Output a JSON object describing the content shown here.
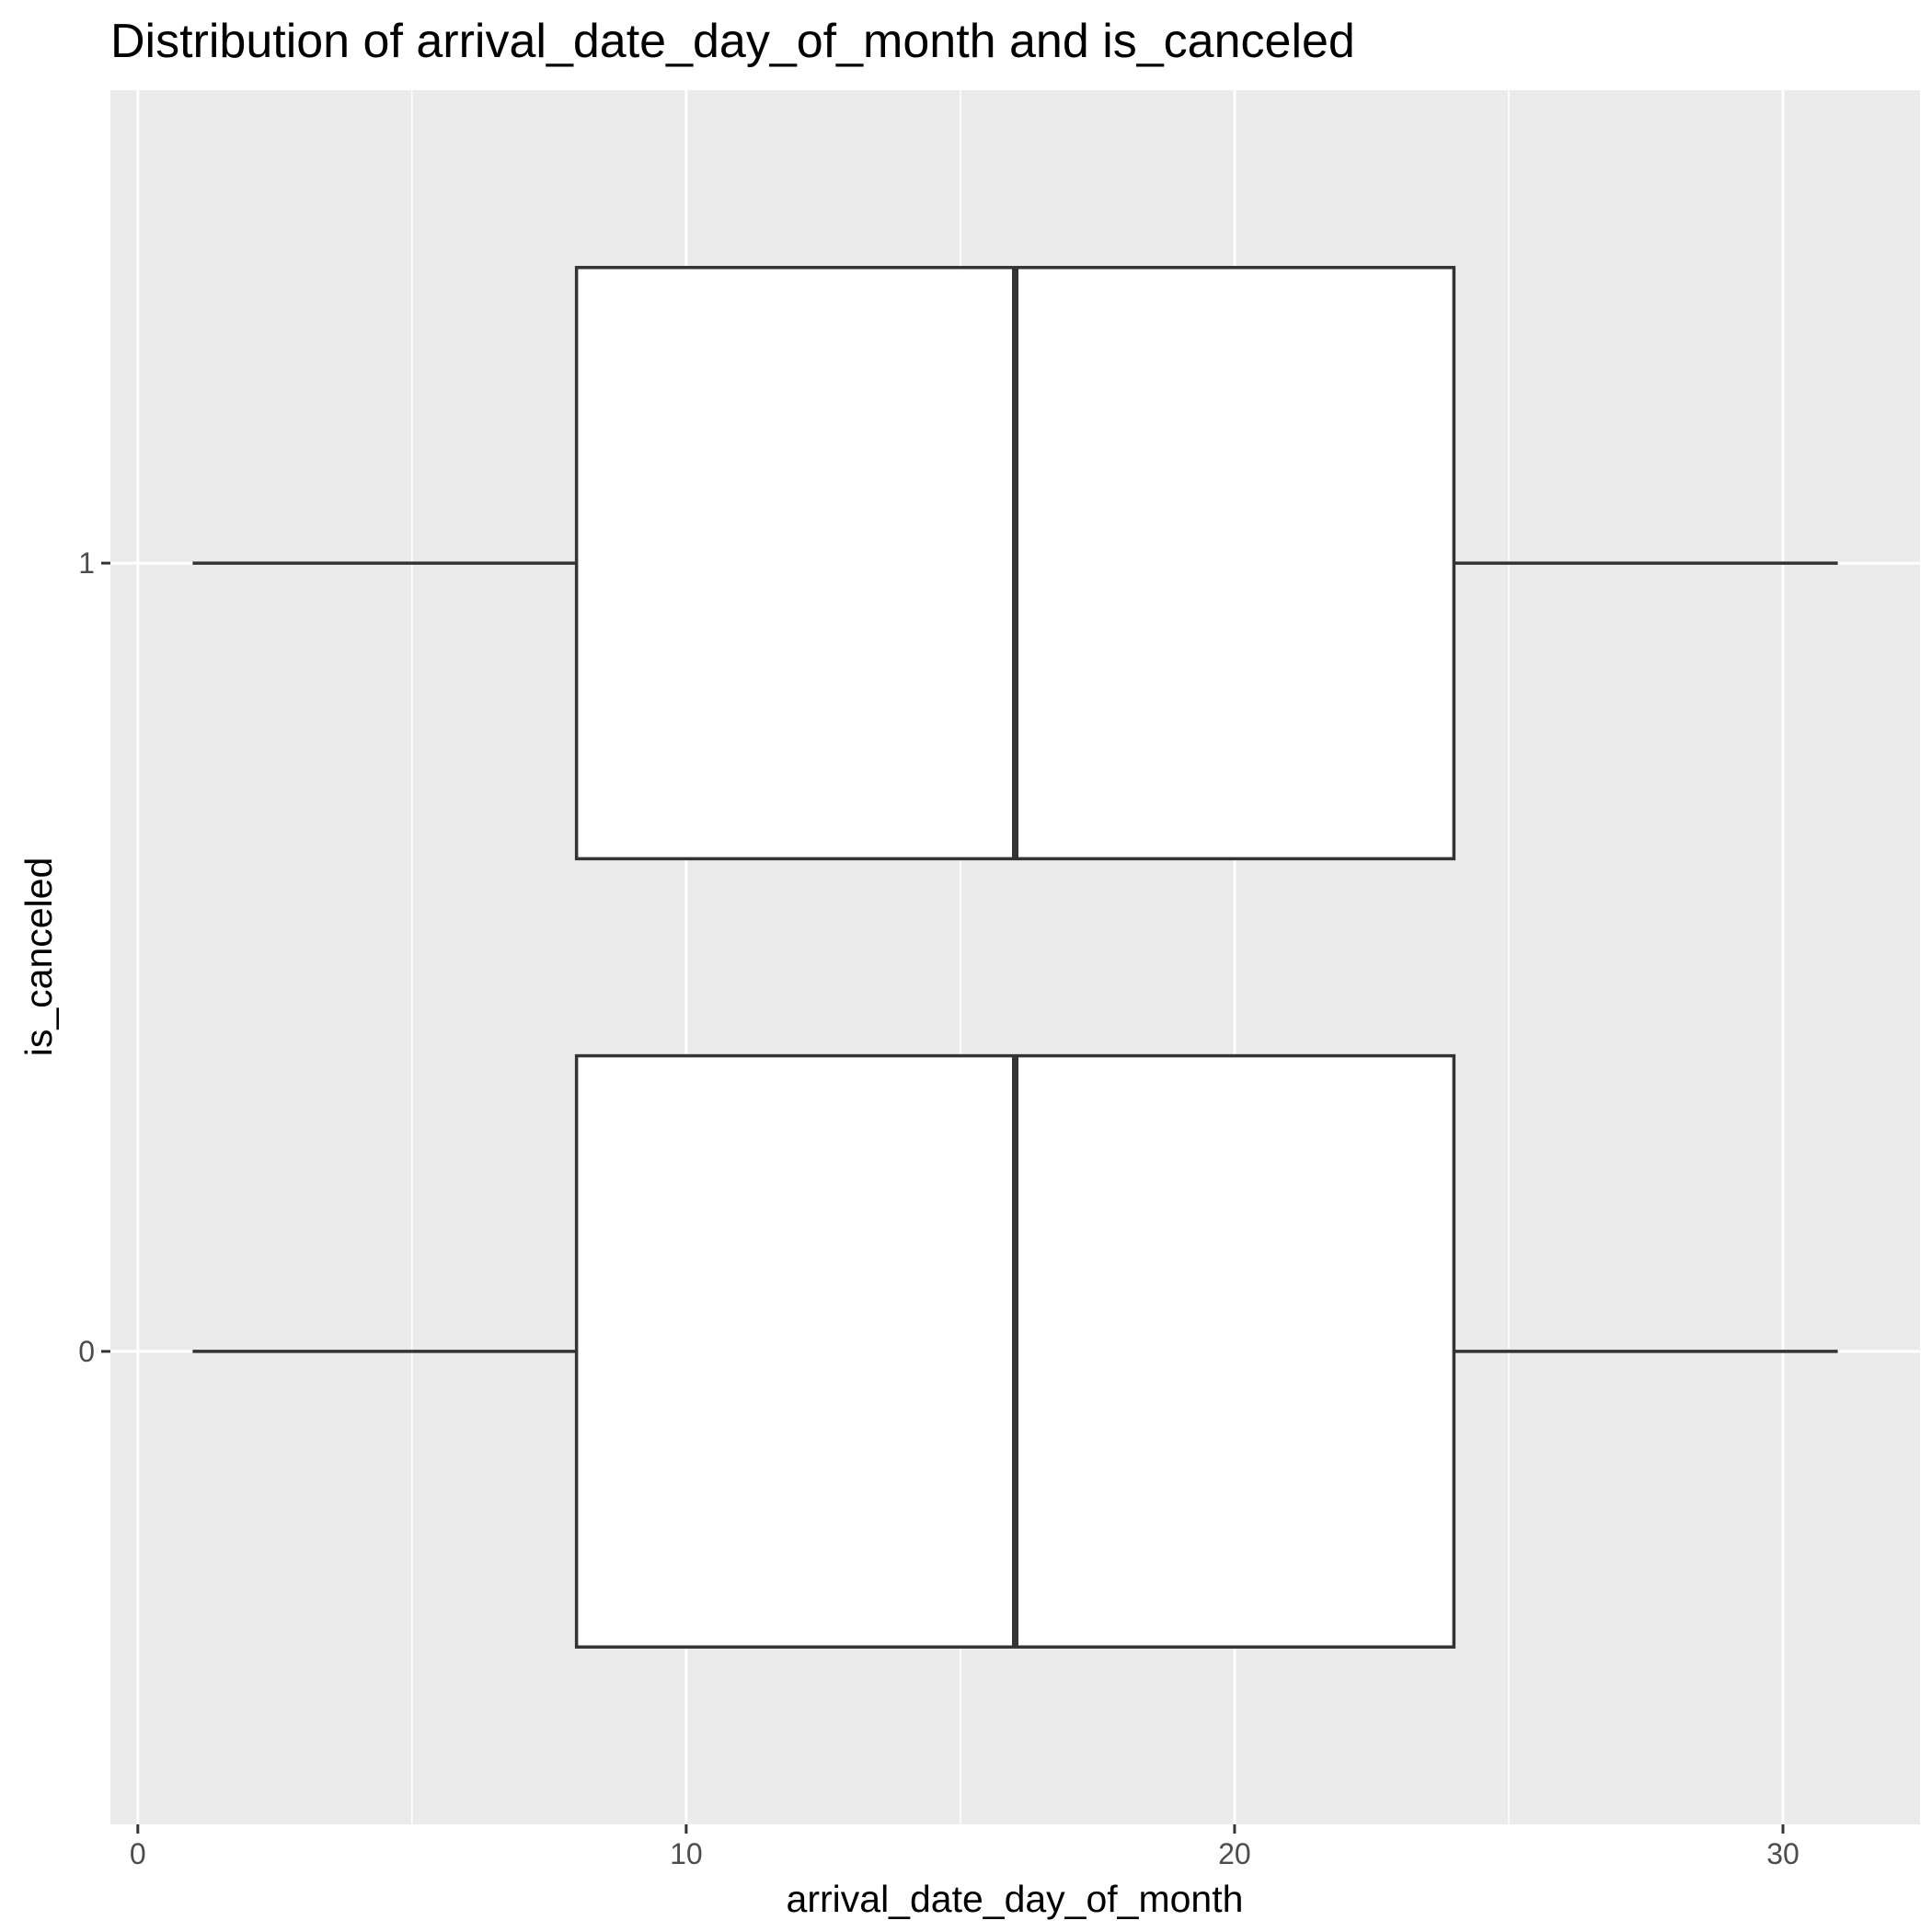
{
  "chart_data": {
    "type": "boxplot",
    "orientation": "horizontal",
    "title": "Distribution of arrival_date_day_of_month and is_canceled",
    "xlabel": "arrival_date_day_of_month",
    "ylabel": "is_canceled",
    "xlim": [
      -0.5,
      32.5
    ],
    "x_ticks": [
      0,
      10,
      20,
      30
    ],
    "x_minor_ticks": [
      5,
      15,
      25
    ],
    "categories": [
      "0",
      "1"
    ],
    "boxes": [
      {
        "category": "0",
        "min": 1,
        "q1": 8,
        "median": 16,
        "q3": 24,
        "max": 31
      },
      {
        "category": "1",
        "min": 1,
        "q1": 8,
        "median": 16,
        "q3": 24,
        "max": 31
      }
    ],
    "grid": true,
    "legend": "none",
    "colors": {
      "panel_background": "#ebebeb",
      "grid": "#ffffff",
      "box_fill": "#ffffff",
      "box_stroke": "#333333",
      "tick": "#333333",
      "tick_label": "#4d4d4d"
    }
  }
}
